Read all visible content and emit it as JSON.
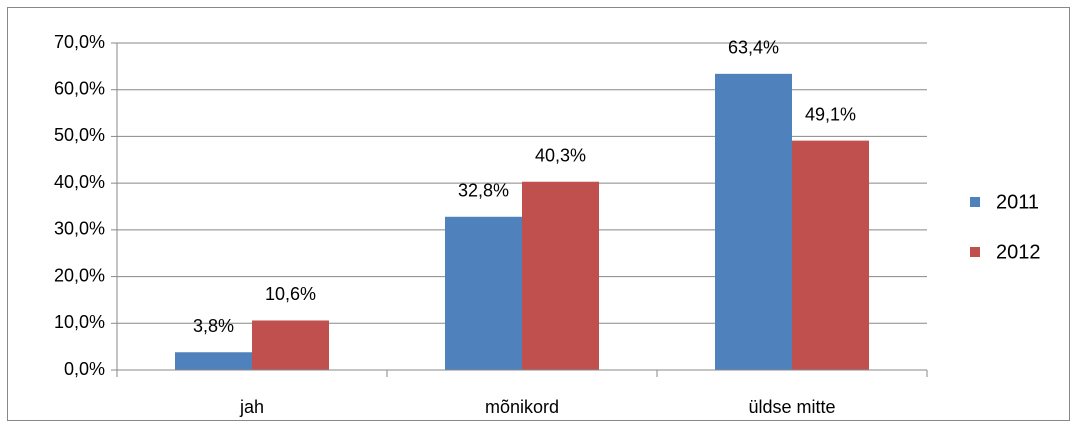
{
  "chart_data": {
    "type": "bar",
    "categories": [
      "jah",
      "mõnikord",
      "üldse mitte"
    ],
    "series": [
      {
        "name": "2011",
        "color": "#4f81bd",
        "values": [
          3.8,
          32.8,
          63.4
        ],
        "value_labels": [
          "3,8%",
          "32,8%",
          "63,4%"
        ]
      },
      {
        "name": "2012",
        "color": "#c0504d",
        "values": [
          10.6,
          40.3,
          49.1
        ],
        "value_labels": [
          "10,6%",
          "40,3%",
          "49,1%"
        ]
      }
    ],
    "ylim": [
      0,
      70
    ],
    "yticks": [
      {
        "value": 0,
        "label": "0,0%"
      },
      {
        "value": 10,
        "label": "10,0%"
      },
      {
        "value": 20,
        "label": "20,0%"
      },
      {
        "value": 30,
        "label": "30,0%"
      },
      {
        "value": 40,
        "label": "40,0%"
      },
      {
        "value": 50,
        "label": "50,0%"
      },
      {
        "value": 60,
        "label": "60,0%"
      },
      {
        "value": 70,
        "label": "70,0%"
      }
    ],
    "grid": true,
    "legend": "right"
  }
}
